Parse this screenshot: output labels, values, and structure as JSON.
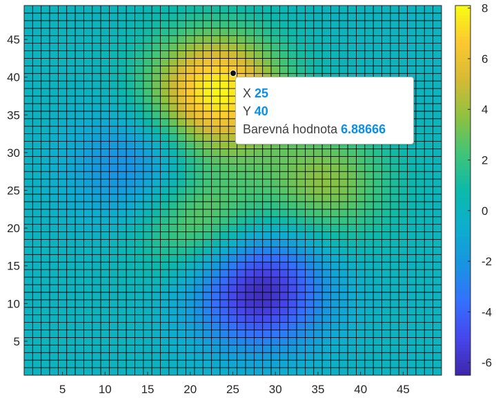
{
  "chart_data": {
    "type": "heatmap",
    "title": "",
    "xlabel": "",
    "ylabel": "",
    "xlim": [
      0.5,
      49.5
    ],
    "ylim": [
      0.5,
      49.5
    ],
    "x_ticks": [
      5,
      10,
      15,
      20,
      25,
      30,
      35,
      40,
      45
    ],
    "y_ticks": [
      5,
      10,
      15,
      20,
      25,
      30,
      35,
      40,
      45
    ],
    "grid_size": [
      49,
      49
    ],
    "colormap": "parula",
    "color_range": [
      -6.5,
      8.1
    ],
    "colorbar_ticks": [
      -6,
      -4,
      -2,
      0,
      2,
      4,
      6,
      8
    ],
    "values_description_note": null,
    "surface_peaks": [
      {
        "x": 23,
        "y": 38,
        "value": 8.1
      },
      {
        "x": 36,
        "y": 26,
        "value": 3.6
      },
      {
        "x": 21,
        "y": 21,
        "value": 3.8
      },
      {
        "x": 14,
        "y": 28,
        "value": -3.0
      },
      {
        "x": 28,
        "y": 12,
        "value": -6.5
      }
    ],
    "datatip": {
      "x_label": "X",
      "x_value": "25",
      "y_label": "Y",
      "y_value": "40",
      "c_label": "Barevná hodnota",
      "c_value": "6.88666",
      "value_color": "#0a8fe8"
    },
    "edge_color": "#000000"
  }
}
